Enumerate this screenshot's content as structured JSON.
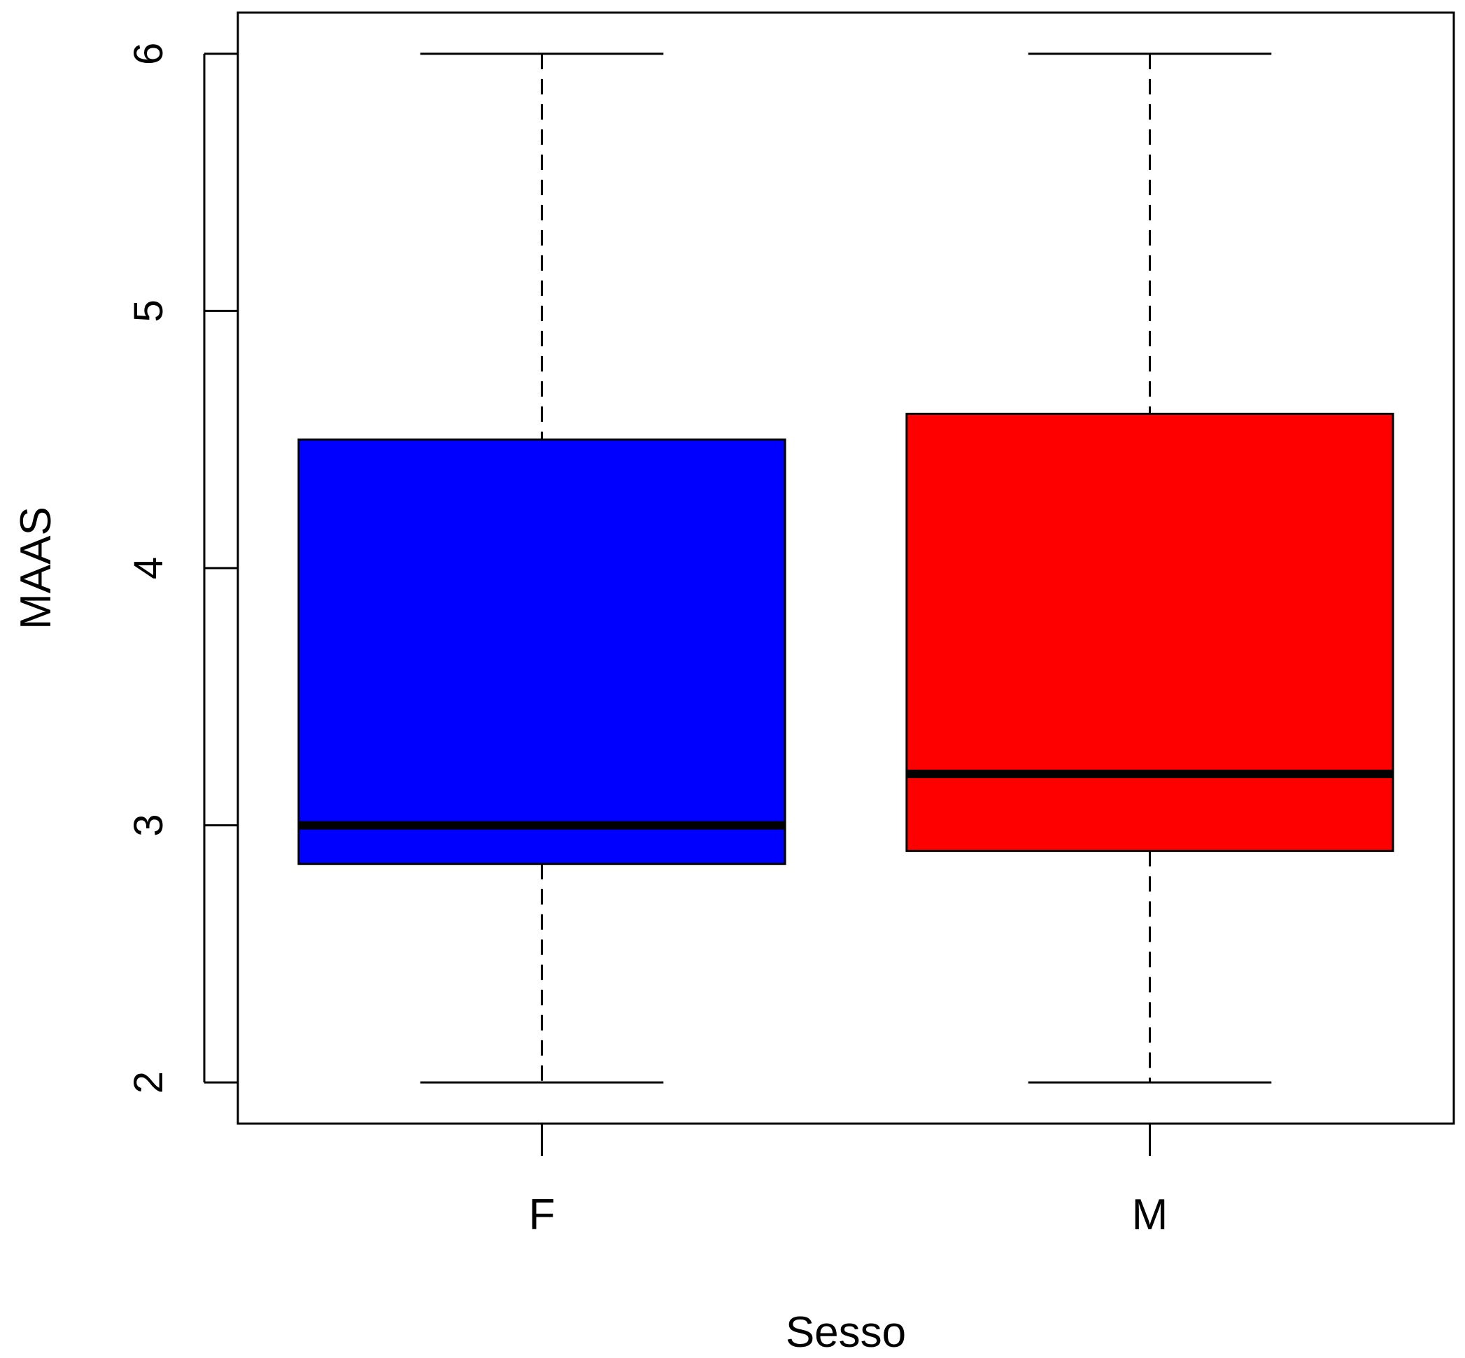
{
  "chart_data": {
    "type": "boxplot",
    "title": "",
    "xlabel": "Sesso",
    "ylabel": "MAAS",
    "ylim": [
      1.84,
      6.16
    ],
    "yticks": [
      "2",
      "3",
      "4",
      "5",
      "6"
    ],
    "grid": false,
    "categories": [
      "F",
      "M"
    ],
    "boxes": [
      {
        "category": "F",
        "color": "#0000ff",
        "min": 2.0,
        "q1": 2.85,
        "median": 3.0,
        "q3": 4.5,
        "max": 6.0
      },
      {
        "category": "M",
        "color": "#ff0000",
        "min": 2.0,
        "q1": 2.9,
        "median": 3.2,
        "q3": 4.6,
        "max": 6.0
      }
    ]
  }
}
